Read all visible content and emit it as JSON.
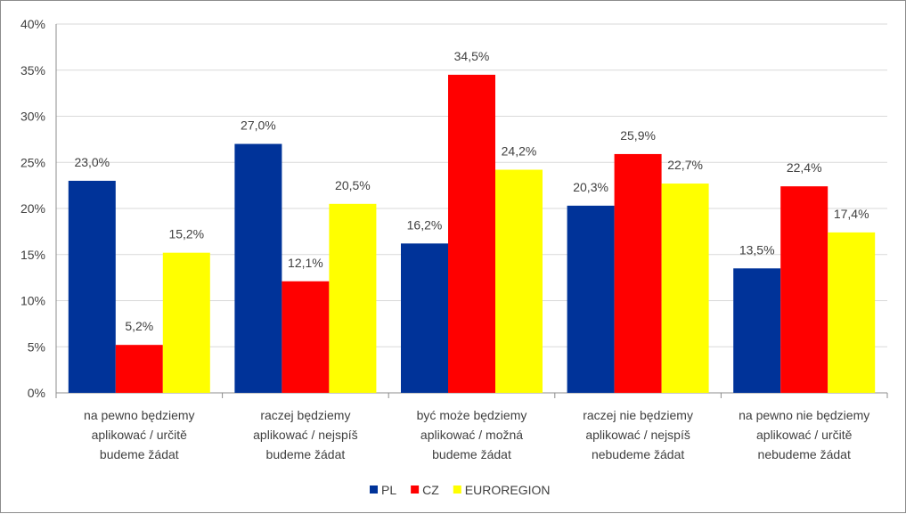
{
  "chart_data": {
    "type": "bar",
    "categories": [
      [
        "na pewno będziemy",
        "aplikować / určitě",
        "budeme žádat"
      ],
      [
        "raczej będziemy",
        "aplikować / nejspíš",
        "budeme žádat"
      ],
      [
        "być może będziemy",
        "aplikować / možná",
        "budeme žádat"
      ],
      [
        "raczej nie będziemy",
        "aplikować / nejspíš",
        "nebudeme žádat"
      ],
      [
        "na pewno nie będziemy",
        "aplikować / určitě",
        "nebudeme žádat"
      ]
    ],
    "series": [
      {
        "name": "PL",
        "color": "#003399",
        "values": [
          23.0,
          27.0,
          16.2,
          20.3,
          13.5
        ],
        "labels": [
          "23,0%",
          "27,0%",
          "16,2%",
          "20,3%",
          "13,5%"
        ]
      },
      {
        "name": "CZ",
        "color": "#ff0000",
        "values": [
          5.2,
          12.1,
          34.5,
          25.9,
          22.4
        ],
        "labels": [
          "5,2%",
          "12,1%",
          "34,5%",
          "25,9%",
          "22,4%"
        ]
      },
      {
        "name": "EUROREGION",
        "color": "#ffff00",
        "values": [
          15.2,
          20.5,
          24.2,
          22.7,
          17.4
        ],
        "labels": [
          "15,2%",
          "20,5%",
          "24,2%",
          "22,7%",
          "17,4%"
        ]
      }
    ],
    "ylim": [
      0,
      40
    ],
    "yticks": [
      "0%",
      "5%",
      "10%",
      "15%",
      "20%",
      "25%",
      "30%",
      "35%",
      "40%"
    ],
    "grid": true,
    "legend_position": "bottom",
    "title": "",
    "xlabel": "",
    "ylabel": ""
  }
}
